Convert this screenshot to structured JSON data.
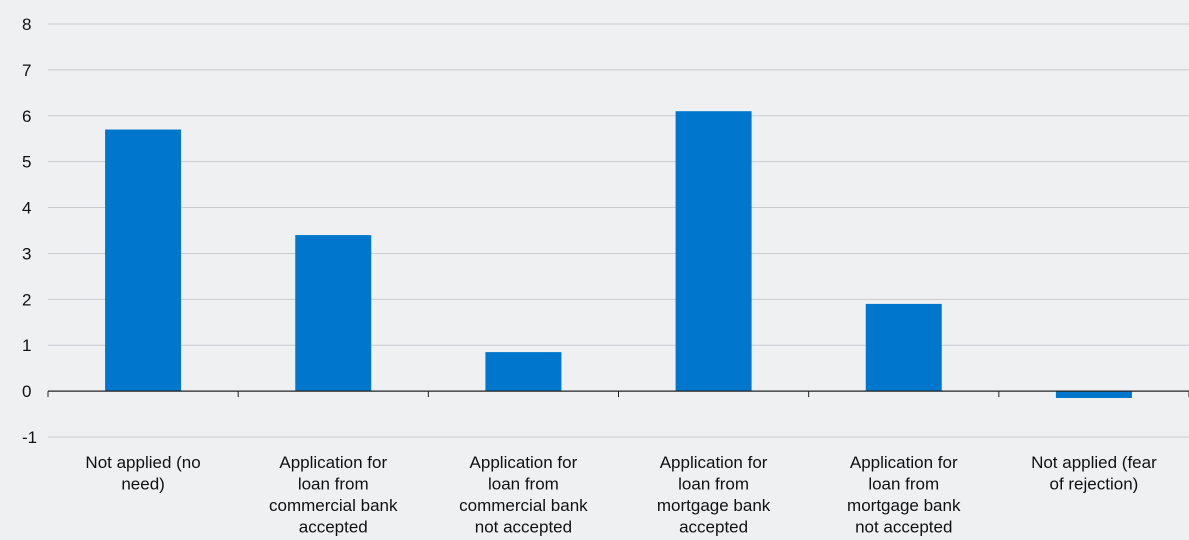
{
  "chart_data": {
    "type": "bar",
    "title": "",
    "xlabel": "",
    "ylabel": "",
    "ylim": [
      -1,
      8
    ],
    "yticks": [
      "-1",
      "0",
      "1",
      "2",
      "3",
      "4",
      "5",
      "6",
      "7",
      "8"
    ],
    "grid": true,
    "legend": "none",
    "bar_color": "#0077cc",
    "categories": [
      [
        "Not applied (no",
        "need)"
      ],
      [
        "Application for",
        "loan from",
        "commercial bank",
        "accepted"
      ],
      [
        "Application for",
        "loan from",
        "commercial bank",
        "not accepted"
      ],
      [
        "Application for",
        "loan from",
        "mortgage bank",
        "accepted"
      ],
      [
        "Application for",
        "loan from",
        "mortgage bank",
        "not accepted"
      ],
      [
        "Not applied (fear",
        "of rejection)"
      ]
    ],
    "values": [
      5.7,
      3.4,
      0.85,
      6.1,
      1.9,
      -0.15
    ]
  }
}
